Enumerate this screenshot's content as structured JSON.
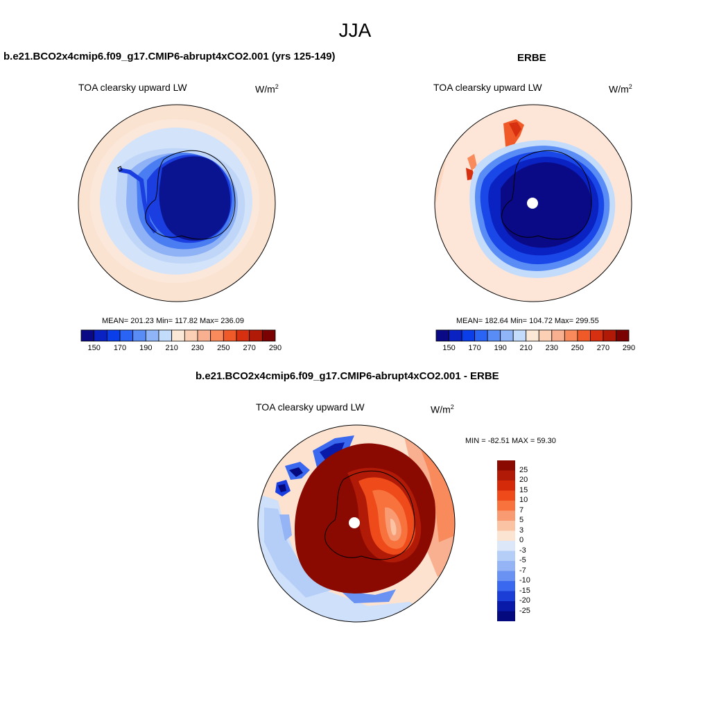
{
  "page": {
    "title": "JJA"
  },
  "panels": [
    {
      "title": "b.e21.BCO2x4cmip6.f09_g17.CMIP6-abrupt4xCO2.001 (yrs 125-149)",
      "subtitle": "TOA clearsky upward LW",
      "units_base": "W/m",
      "units_sup": "2",
      "stats": "MEAN= 201.23  Min= 117.82  Max= 236.09",
      "colorbar_labels": [
        "150",
        "170",
        "190",
        "210",
        "230",
        "250",
        "270",
        "290"
      ],
      "colorbar_colors": [
        "#0a0a86",
        "#0a22c2",
        "#0a3ee8",
        "#2a64f4",
        "#5a8cf6",
        "#90b4f8",
        "#c4dcfc",
        "#fce8d6",
        "#fcd0b4",
        "#f8b090",
        "#f88a5c",
        "#f05a28",
        "#d63010",
        "#b01a06",
        "#7a0202"
      ]
    },
    {
      "title": "ERBE",
      "subtitle": "TOA clearsky upward LW",
      "units_base": "W/m",
      "units_sup": "2",
      "stats": "MEAN= 182.64  Min= 104.72  Max= 299.55",
      "colorbar_labels": [
        "150",
        "170",
        "190",
        "210",
        "230",
        "250",
        "270",
        "290"
      ],
      "colorbar_colors": [
        "#0a0a86",
        "#0a22c2",
        "#0a3ee8",
        "#2a64f4",
        "#5a8cf6",
        "#90b4f8",
        "#c4dcfc",
        "#fce8d6",
        "#fcd0b4",
        "#f8b090",
        "#f88a5c",
        "#f05a28",
        "#d63010",
        "#b01a06",
        "#7a0202"
      ]
    },
    {
      "title": "b.e21.BCO2x4cmip6.f09_g17.CMIP6-abrupt4xCO2.001 - ERBE",
      "subtitle": "TOA clearsky upward LW",
      "units_base": "W/m",
      "units_sup": "2",
      "stats": "MIN = -82.51 MAX =  59.30",
      "colorbar_labels": [
        "25",
        "20",
        "15",
        "10",
        "7",
        "5",
        "3",
        "0",
        "-3",
        "-5",
        "-7",
        "-10",
        "-15",
        "-20",
        "-25"
      ],
      "colorbar_colors": [
        "#8a0a02",
        "#b01a06",
        "#d42a0a",
        "#ee4a1a",
        "#f8723e",
        "#f89a72",
        "#fac4a4",
        "#fce4d2",
        "#dce8fa",
        "#b4cef8",
        "#94b4f6",
        "#6a92f2",
        "#3a68ee",
        "#1a3ed6",
        "#0a1aa8",
        "#040a7e"
      ]
    }
  ],
  "legend_colors": {
    "dark_red": "#8a0a02",
    "peach": "#fce4d2",
    "light_blue": "#cfe0fa",
    "deep_blue": "#060a80"
  }
}
